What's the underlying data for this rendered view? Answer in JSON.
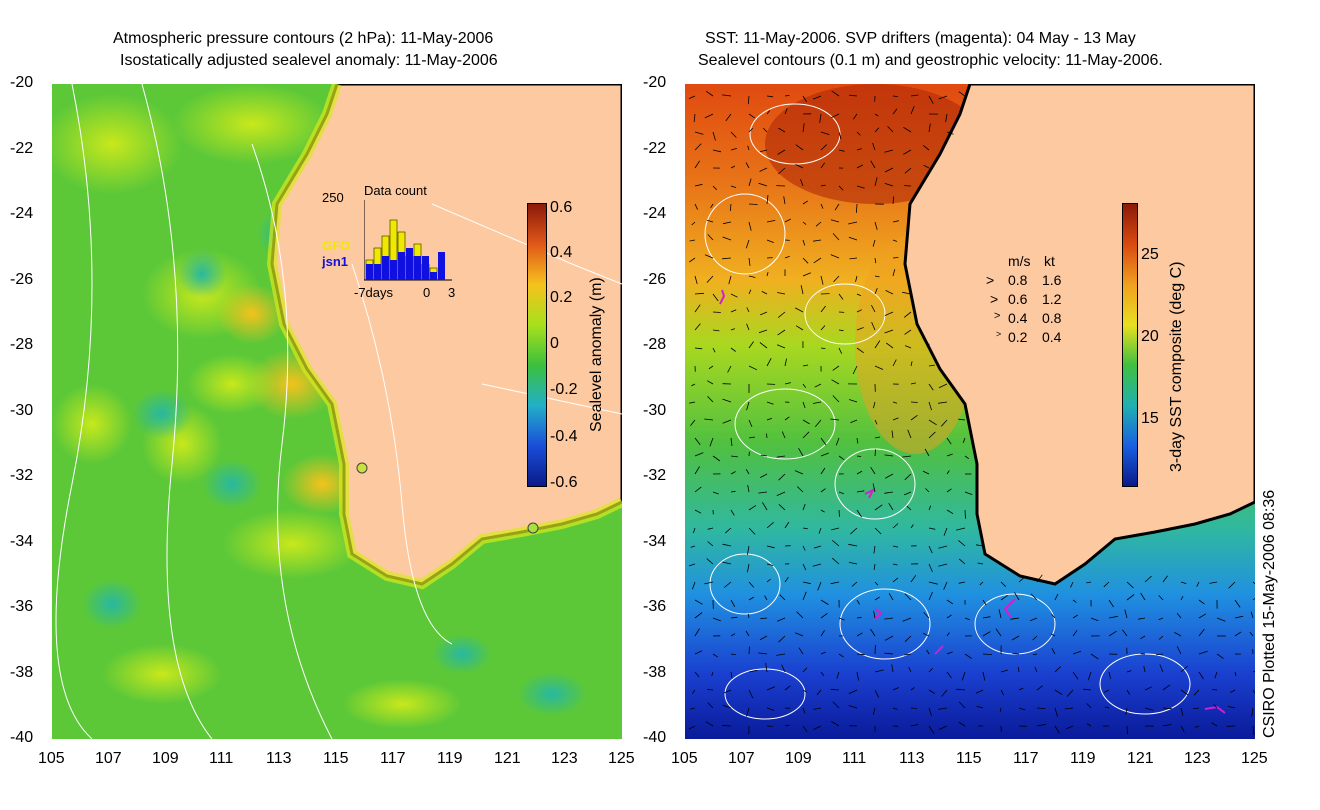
{
  "left": {
    "title_line1": "Atmospheric pressure contours (2 hPa): 11-May-2006",
    "title_line2": "Isostatically adjusted sealevel anomaly: 11-May-2006",
    "colorbar_label": "Sealevel anomaly (m)",
    "colorbar_ticks": [
      "0.6",
      "0.4",
      "0.2",
      "0",
      "-0.2",
      "-0.4",
      "-0.6"
    ],
    "colorbar_colors": [
      "#8b1a08",
      "#e0581a",
      "#f5c21c",
      "#a8e01c",
      "#3cc03c",
      "#22b0c8",
      "#1a4ed8",
      "#0a1a8a"
    ],
    "inset": {
      "title": "Data count",
      "ymax": "250",
      "legend": [
        {
          "name": "GFO",
          "color": "#f0e800"
        },
        {
          "name": "jsn1",
          "color": "#1010e0"
        }
      ],
      "xlabels": [
        "-7days",
        "0",
        "3"
      ],
      "bars_gfo": [
        0.25,
        0.4,
        0.55,
        0.75,
        0.6,
        0.3,
        0.45,
        0.2,
        0.15,
        0.0
      ],
      "bars_jsn": [
        0.2,
        0.2,
        0.3,
        0.25,
        0.35,
        0.4,
        0.3,
        0.3,
        0.1,
        0.35
      ]
    }
  },
  "right": {
    "title_line1": "SST: 11-May-2006. SVP drifters (magenta): 04 May - 13 May",
    "title_line2": "Sealevel contours (0.1 m) and geostrophic velocity: 11-May-2006.",
    "colorbar_label": "3-day SST composite (deg C)",
    "colorbar_ticks": [
      "25",
      "20",
      "15"
    ],
    "colorbar_colors": [
      "#8b1a08",
      "#d84a10",
      "#f0a020",
      "#e8e020",
      "#40c040",
      "#20b0b0",
      "#1a60e0",
      "#0a1a8a"
    ],
    "velocity_legend": {
      "header_ms": "m/s",
      "header_kt": "kt",
      "rows": [
        {
          "ms": "0.8",
          "kt": "1.6"
        },
        {
          "ms": "0.6",
          "kt": "1.2"
        },
        {
          "ms": "0.4",
          "kt": "0.8"
        },
        {
          "ms": "0.2",
          "kt": "0.4"
        }
      ]
    }
  },
  "axes": {
    "x_ticks": [
      "105",
      "107",
      "109",
      "111",
      "113",
      "115",
      "117",
      "119",
      "121",
      "123",
      "125"
    ],
    "y_ticks": [
      "-20",
      "-22",
      "-24",
      "-26",
      "-28",
      "-30",
      "-32",
      "-34",
      "-36",
      "-38",
      "-40"
    ]
  },
  "credit": "CSIRO Plotted 15-May-2006 08:36",
  "colors": {
    "land": "#fdc9a0",
    "coast": "#000000",
    "contour": "#ffffff",
    "drifter": "#d020d0"
  }
}
